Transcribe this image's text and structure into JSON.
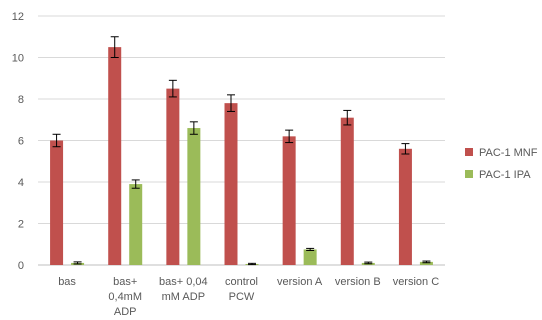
{
  "chart_data": {
    "type": "bar",
    "title": "",
    "xlabel": "",
    "ylabel": "",
    "ylim": [
      0,
      12
    ],
    "yticks": [
      0,
      2,
      4,
      6,
      8,
      10,
      12
    ],
    "grid": true,
    "legend_position": "right",
    "categories": [
      [
        "bas"
      ],
      [
        "bas+",
        "0,4mM",
        "ADP"
      ],
      [
        "bas+ 0,04",
        "mM ADP"
      ],
      [
        "control",
        "PCW"
      ],
      [
        "version A"
      ],
      [
        "version B"
      ],
      [
        "version C"
      ]
    ],
    "series": [
      {
        "name": "PAC-1 MNF",
        "color": "#c0504d",
        "values": [
          6.0,
          10.5,
          8.5,
          7.8,
          6.2,
          7.1,
          5.6
        ],
        "errors": [
          0.3,
          0.5,
          0.4,
          0.4,
          0.3,
          0.35,
          0.25
        ]
      },
      {
        "name": "PAC-1 IPA",
        "color": "#9bbb59",
        "values": [
          0.1,
          3.9,
          6.6,
          0.05,
          0.75,
          0.1,
          0.15
        ],
        "errors": [
          0.05,
          0.2,
          0.3,
          0.03,
          0.05,
          0.04,
          0.04
        ]
      }
    ]
  }
}
